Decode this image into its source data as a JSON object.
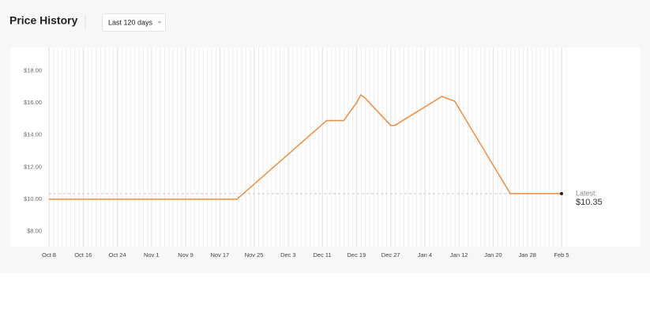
{
  "chart_data": {
    "type": "line",
    "title": "Price History",
    "range_selector": "Last 120 days",
    "x": [
      0,
      44,
      65,
      69,
      72,
      73,
      74,
      80,
      81,
      92,
      95,
      108,
      120
    ],
    "series": [
      {
        "color": "#f28b3c",
        "values": [
          10.0,
          10.0,
          14.9,
          14.9,
          16.0,
          16.5,
          16.3,
          14.6,
          14.6,
          16.4,
          16.1,
          10.35,
          10.35
        ]
      }
    ],
    "xlim": [
      0,
      120
    ],
    "xticks": [
      {
        "value": 0,
        "label": "Oct 8"
      },
      {
        "value": 8,
        "label": "Oct 16"
      },
      {
        "value": 16,
        "label": "Oct 24"
      },
      {
        "value": 24,
        "label": "Nov 1"
      },
      {
        "value": 32,
        "label": "Nov 9"
      },
      {
        "value": 40,
        "label": "Nov 17"
      },
      {
        "value": 48,
        "label": "Nov 25"
      },
      {
        "value": 56,
        "label": "Dec 3"
      },
      {
        "value": 64,
        "label": "Dec 11"
      },
      {
        "value": 72,
        "label": "Dec 19"
      },
      {
        "value": 80,
        "label": "Dec 27"
      },
      {
        "value": 88,
        "label": "Jan 4"
      },
      {
        "value": 96,
        "label": "Jan 12"
      },
      {
        "value": 104,
        "label": "Jan 20"
      },
      {
        "value": 112,
        "label": "Jan 28"
      },
      {
        "value": 120,
        "label": "Feb 5"
      }
    ],
    "ylim": [
      7.05,
      19.45
    ],
    "yticks": [
      {
        "value": 8,
        "label": "$8.00"
      },
      {
        "value": 10,
        "label": "$10.00"
      },
      {
        "value": 12,
        "label": "$12.00"
      },
      {
        "value": 14,
        "label": "$14.00"
      },
      {
        "value": 16,
        "label": "$16.00"
      },
      {
        "value": 18,
        "label": "$18.00"
      }
    ],
    "latest": {
      "label": "Latest:",
      "value": 10.35,
      "value_label": "$10.35"
    }
  }
}
